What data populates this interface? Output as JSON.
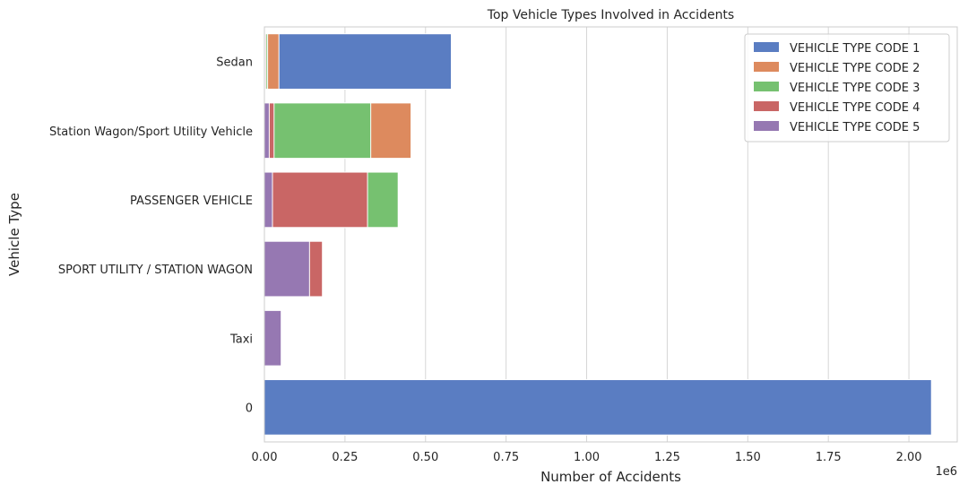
{
  "chart_data": {
    "type": "bar",
    "orientation": "horizontal",
    "title": "Top Vehicle Types Involved in Accidents",
    "xlabel": "Number of Accidents",
    "ylabel": "Vehicle Type",
    "x_offset_label": "1e6",
    "xlim": [
      0,
      2150000
    ],
    "x_ticks": [
      0,
      250000,
      500000,
      750000,
      1000000,
      1250000,
      1500000,
      1750000,
      2000000
    ],
    "x_tick_labels": [
      "0.00",
      "0.25",
      "0.50",
      "0.75",
      "1.00",
      "1.25",
      "1.50",
      "1.75",
      "2.00"
    ],
    "grid": "x",
    "legend_position": "top-right",
    "categories": [
      "Sedan",
      "Station Wagon/Sport Utility Vehicle",
      "PASSENGER VEHICLE",
      "SPORT UTILITY / STATION WAGON",
      "Taxi",
      "0"
    ],
    "series": [
      {
        "name": "VEHICLE TYPE CODE 1",
        "color": "#5A7DC2",
        "values": [
          580000,
          400000,
          320000,
          140000,
          50000,
          2070000
        ]
      },
      {
        "name": "VEHICLE TYPE CODE 2",
        "color": "#DD8A5E",
        "values": [
          45000,
          455000,
          310000,
          150000,
          45000,
          0
        ]
      },
      {
        "name": "VEHICLE TYPE CODE 3",
        "color": "#76C170",
        "values": [
          10000,
          330000,
          415000,
          160000,
          20000,
          0
        ]
      },
      {
        "name": "VEHICLE TYPE CODE 4",
        "color": "#C96665",
        "values": [
          5000,
          30000,
          320000,
          180000,
          10000,
          0
        ]
      },
      {
        "name": "VEHICLE TYPE CODE 5",
        "color": "#9678B2",
        "values": [
          2000,
          15000,
          25000,
          140000,
          52000,
          0
        ]
      }
    ]
  }
}
